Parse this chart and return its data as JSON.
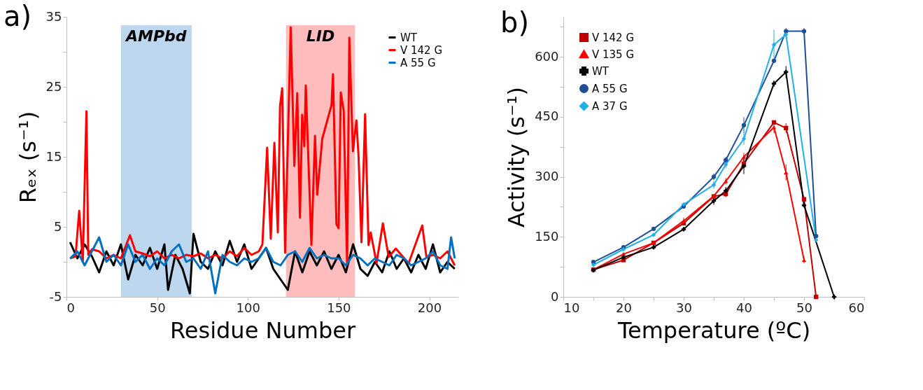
{
  "chart_data": [
    {
      "type": "line",
      "title": "a)",
      "xlabel": "Residue Number",
      "ylabel": "Rₑₓ (s⁻¹)",
      "xlim": [
        0,
        216
      ],
      "xticks": [
        0,
        50,
        100,
        150,
        200
      ],
      "ylim": [
        -5,
        35
      ],
      "yticks": [
        -5,
        {
          "value": 0,
          "label": null
        },
        5,
        {
          "value": 10,
          "label": null
        },
        15,
        {
          "value": 20,
          "label": null
        },
        25,
        {
          "value": 30,
          "label": null
        },
        35
      ],
      "legend": "top right",
      "bands": [
        {
          "axis": "x",
          "from": 30,
          "to": 69,
          "label": "AMPbd",
          "color": "#bdd7ee"
        },
        {
          "axis": "x",
          "from": 121,
          "to": 159,
          "label": "LID",
          "color": "#ffbcbc"
        }
      ],
      "series": [
        {
          "name": "WT",
          "color": "#000000",
          "x": [
            2,
            6,
            10,
            14,
            18,
            22,
            26,
            30,
            34,
            38,
            42,
            46,
            50,
            54,
            56,
            60,
            64,
            68,
            70,
            74,
            78,
            82,
            86,
            90,
            94,
            98,
            102,
            106,
            110,
            114,
            118,
            122,
            126,
            130,
            134,
            138,
            142,
            146,
            150,
            154,
            158,
            162,
            166,
            170,
            174,
            178,
            182,
            186,
            190,
            194,
            198,
            202,
            206,
            210,
            214
          ],
          "values": [
            2.8,
            0.5,
            2.5,
            0.8,
            -1.5,
            1.5,
            -0.5,
            2.5,
            -2.5,
            1,
            -0.5,
            2,
            -1,
            2.5,
            -4,
            1,
            -1,
            -4.5,
            4,
            0,
            -1,
            1.5,
            -0.5,
            3,
            0,
            2.5,
            -1,
            0.5,
            2,
            -1,
            -2.5,
            -4,
            1.5,
            -1.5,
            1.5,
            -0.5,
            1.5,
            -1,
            1,
            -1.5,
            2.5,
            -1,
            -2,
            0,
            -1.5,
            1.5,
            -1,
            0.5,
            -1.5,
            1,
            -1,
            2.5,
            -1.5,
            0,
            -1
          ]
        },
        {
          "name": "V 142 G",
          "color": "#ff0000",
          "x": [
            2,
            5,
            7,
            9,
            11,
            12,
            14,
            18,
            22,
            26,
            30,
            35,
            38,
            42,
            46,
            50,
            54,
            58,
            62,
            66,
            70,
            74,
            78,
            82,
            86,
            90,
            94,
            98,
            102,
            106,
            108,
            110.6,
            112.6,
            114.6,
            116.5,
            117.7,
            118.9,
            120.5,
            123.6,
            125.6,
            127.2,
            128.7,
            129.9,
            131.1,
            131.9,
            135,
            137,
            138.2,
            141,
            146.1,
            146.9,
            148.8,
            150,
            151.2,
            152.8,
            154.7,
            155.9,
            157.9,
            159.8,
            161,
            162.6,
            164.6,
            166.5,
            167.7,
            170.9,
            174.4,
            177.6,
            181.5,
            188.6,
            196.1,
            198.4,
            202,
            206,
            210,
            214
          ],
          "values": [
            0.5,
            0.8,
            7.3,
            0,
            21.5,
            1,
            1.8,
            1.5,
            0.5,
            1,
            0.5,
            3.8,
            1.5,
            1.2,
            0.8,
            1.5,
            0.5,
            1,
            0.5,
            1,
            0.8,
            1.2,
            0.5,
            1,
            0.5,
            1.5,
            0.8,
            2,
            1,
            1.5,
            2.5,
            16.3,
            3.3,
            17,
            4.2,
            22.2,
            24.8,
            1.3,
            33.5,
            13.7,
            24.1,
            6.3,
            21,
            16.5,
            25.2,
            2.4,
            18,
            9.6,
            17.6,
            22.4,
            26.8,
            5.4,
            4.8,
            24.2,
            21.6,
            -0.4,
            32,
            15.8,
            20.2,
            15,
            2.8,
            21.1,
            2.4,
            4.2,
            -0.2,
            5.5,
            0.7,
            1.9,
            -0.2,
            5.2,
            0.7,
            1,
            0.5,
            1.5,
            -0.5
          ]
        },
        {
          "name": "A 55 G",
          "color": "#0070c0",
          "x": [
            2,
            6,
            10,
            14,
            18,
            22,
            26,
            30,
            34,
            38,
            42,
            46,
            50,
            54,
            58,
            62,
            66,
            70,
            74,
            78,
            82,
            86,
            90,
            94,
            98,
            102,
            106,
            110,
            114,
            118,
            122,
            126,
            130,
            134,
            138,
            142,
            146,
            150,
            154,
            158,
            162,
            166,
            170,
            174,
            178,
            182,
            186,
            190,
            194,
            198,
            202,
            206,
            210,
            212,
            214
          ],
          "values": [
            0.5,
            1.5,
            -0.5,
            1.5,
            3.5,
            0,
            1,
            -0.5,
            2.5,
            0,
            1,
            -1,
            0.5,
            -0.5,
            1.5,
            2.5,
            0,
            0.5,
            -1,
            1.5,
            -4.5,
            1,
            0,
            -0.5,
            0.5,
            0,
            0.5,
            2,
            0,
            -0.5,
            1,
            1.5,
            0,
            2,
            0.5,
            1,
            0.5,
            0.5,
            -0.5,
            1,
            0.5,
            -0.5,
            0.5,
            0,
            -0.5,
            1,
            0.5,
            -0.5,
            0,
            0.5,
            1.5,
            -0.5,
            -1,
            3.5,
            0.5
          ]
        }
      ]
    },
    {
      "type": "line",
      "title": "b)",
      "xlabel": "Temperature (ºC)",
      "ylabel": "Activity (s⁻¹)",
      "xlim": [
        10,
        60
      ],
      "xticks": [
        10,
        {
          "value": 15,
          "label": null
        },
        20,
        {
          "value": 25,
          "label": null
        },
        30,
        {
          "value": 35,
          "label": null
        },
        40,
        {
          "value": 45,
          "label": null
        },
        50,
        {
          "value": 55,
          "label": null
        },
        60
      ],
      "ylim": [
        0,
        700
      ],
      "yticks": [
        0,
        {
          "value": 75,
          "label": null
        },
        150,
        {
          "value": 225,
          "label": null
        },
        300,
        {
          "value": 375,
          "label": null
        },
        450,
        {
          "value": 525,
          "label": null
        },
        600,
        {
          "value": 675,
          "label": null
        }
      ],
      "legend": "top left",
      "series": [
        {
          "name": "V 142 G",
          "color": "#c00000",
          "marker": "square",
          "x": [
            15,
            20,
            25,
            30,
            35,
            37,
            40,
            45,
            47,
            50,
            52
          ],
          "values": [
            68,
            92,
            135,
            184,
            251,
            257,
            333,
            436,
            422,
            244,
            0
          ],
          "errors": [
            null,
            null,
            null,
            5,
            null,
            8,
            10,
            5,
            12,
            null,
            null
          ]
        },
        {
          "name": "V 135 G",
          "color": "#ff0000",
          "marker": "triangle",
          "x": [
            15,
            20,
            25,
            30,
            35,
            37,
            40,
            45,
            47,
            50
          ],
          "values": [
            68,
            107,
            135,
            190,
            252,
            289,
            350,
            424,
            311,
            92
          ],
          "errors": [
            null,
            null,
            null,
            8,
            null,
            8,
            10,
            15,
            20,
            8
          ]
        },
        {
          "name": "WT",
          "color": "#000000",
          "marker": "cross",
          "x": [
            15,
            20,
            25,
            30,
            35,
            37,
            40,
            45,
            47,
            50,
            55
          ],
          "values": [
            67,
            99,
            124,
            169,
            240,
            265,
            327,
            533,
            562,
            229,
            0
          ],
          "errors": [
            null,
            null,
            null,
            null,
            10,
            10,
            20,
            8,
            15,
            null,
            null
          ]
        },
        {
          "name": "A 55 G",
          "color": "#1f4e99",
          "marker": "circle",
          "x": [
            15,
            20,
            25,
            30,
            35,
            37,
            40,
            45,
            47,
            50,
            52
          ],
          "values": [
            87,
            124,
            170,
            226,
            300,
            342,
            429,
            590,
            664,
            664,
            152
          ],
          "errors": [
            null,
            null,
            null,
            null,
            8,
            8,
            20,
            null,
            8,
            8,
            null
          ]
        },
        {
          "name": "A 37 G",
          "color": "#1fb0e8",
          "marker": "diamond",
          "x": [
            15,
            20,
            25,
            30,
            35,
            37,
            40,
            45,
            47,
            52
          ],
          "values": [
            80,
            119,
            155,
            231,
            280,
            331,
            395,
            630,
            656,
            142
          ],
          "errors": [
            null,
            null,
            null,
            null,
            10,
            10,
            15,
            38,
            10,
            null
          ]
        }
      ]
    }
  ]
}
